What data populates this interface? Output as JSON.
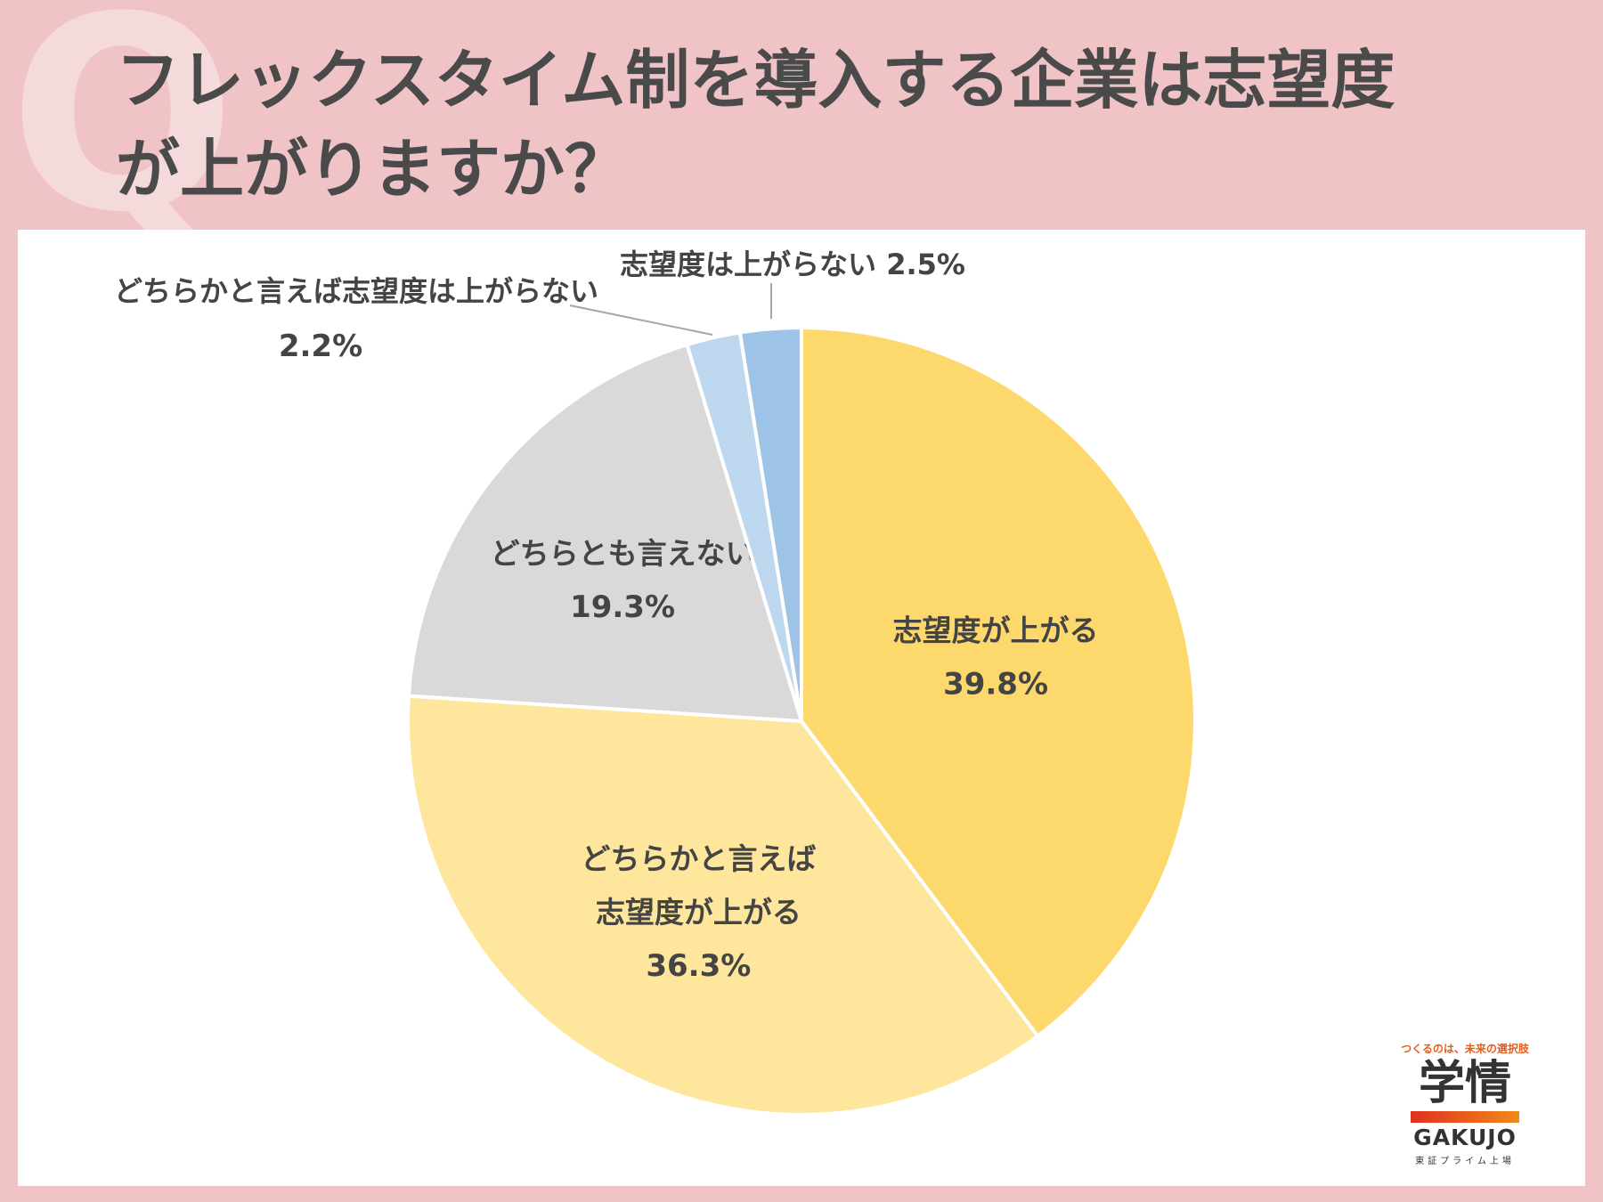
{
  "header": {
    "q_mark": "Q",
    "title_line1": "フレックスタイム制を導入する企業は志望度",
    "title_line2": "が上がりますか？"
  },
  "chart_data": {
    "type": "pie",
    "title": "フレックスタイム制を導入する企業は志望度が上がりますか？",
    "start_angle_deg": 0,
    "direction": "clockwise",
    "slices": [
      {
        "label_lines": [
          "志望度が上がる"
        ],
        "value": 39.8,
        "value_text": "39.8%",
        "color": "#fdd96d",
        "label_inside": true
      },
      {
        "label_lines": [
          "どちらかと言えば",
          "志望度が上がる"
        ],
        "value": 36.3,
        "value_text": "36.3%",
        "color": "#fee69c",
        "label_inside": true
      },
      {
        "label_lines": [
          "どちらとも言えない"
        ],
        "value": 19.3,
        "value_text": "19.3%",
        "color": "#d9d9d9",
        "label_inside": true
      },
      {
        "label_lines": [
          "どちらかと言えば志望度は上がらない"
        ],
        "value": 2.2,
        "value_text": "2.2%",
        "color": "#bdd7ee",
        "label_inside": false
      },
      {
        "label_lines": [
          "志望度は上がらない"
        ],
        "value": 2.5,
        "value_text": "2.5%",
        "color": "#9dc3e6",
        "label_inside": false
      }
    ]
  },
  "logo": {
    "tagline": "つくるのは、未来の選択肢",
    "kanji": "学情",
    "brand": "GAKUJO",
    "sub": "東証プライム上場"
  }
}
